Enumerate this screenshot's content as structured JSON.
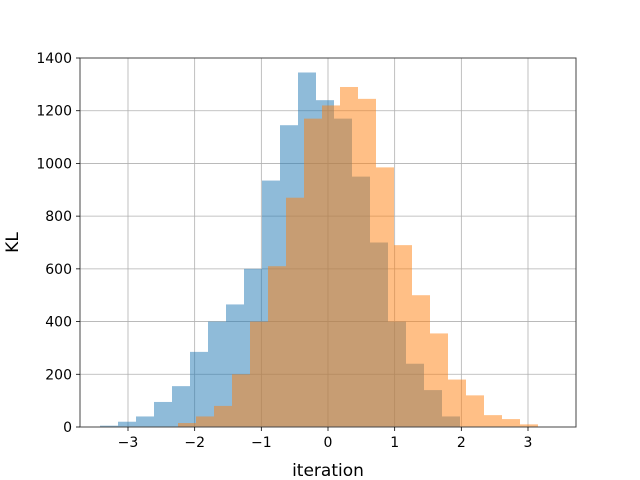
{
  "chart_data": {
    "type": "bar",
    "title": "",
    "xlabel": "iteration",
    "ylabel": "KL",
    "xlim": [
      -3.72,
      3.72
    ],
    "ylim": [
      0,
      1400
    ],
    "xticks": [
      -3,
      -2,
      -1,
      0,
      1,
      2,
      3
    ],
    "xtick_labels": [
      "−3",
      "−2",
      "−1",
      "0",
      "1",
      "2",
      "3"
    ],
    "yticks": [
      0,
      200,
      400,
      600,
      800,
      1000,
      1200,
      1400
    ],
    "ytick_labels": [
      "0",
      "200",
      "400",
      "600",
      "800",
      "1000",
      "1200",
      "1400"
    ],
    "grid": true,
    "legend": "none",
    "series": [
      {
        "color": "#1f77b4",
        "opacity": 0.5,
        "bin_edges": [
          -3.42,
          -3.15,
          -2.88,
          -2.61,
          -2.34,
          -2.07,
          -1.8,
          -1.53,
          -1.26,
          -0.99,
          -0.72,
          -0.45,
          -0.18,
          0.09,
          0.36,
          0.63,
          0.9,
          1.17,
          1.44,
          1.71,
          1.98
        ],
        "counts": [
          5,
          20,
          40,
          95,
          155,
          285,
          400,
          465,
          600,
          935,
          1145,
          1345,
          1240,
          1170,
          950,
          700,
          400,
          240,
          140,
          40
        ]
      },
      {
        "color": "#ff7f0e",
        "opacity": 0.5,
        "bin_edges": [
          -2.25,
          -1.98,
          -1.71,
          -1.44,
          -1.17,
          -0.9,
          -0.63,
          -0.36,
          -0.09,
          0.18,
          0.45,
          0.72,
          0.99,
          1.26,
          1.53,
          1.8,
          2.07,
          2.34,
          2.61,
          2.88,
          3.15
        ],
        "counts": [
          15,
          40,
          80,
          200,
          400,
          610,
          870,
          1170,
          1220,
          1290,
          1245,
          985,
          690,
          500,
          355,
          180,
          120,
          45,
          30,
          10
        ]
      }
    ]
  }
}
